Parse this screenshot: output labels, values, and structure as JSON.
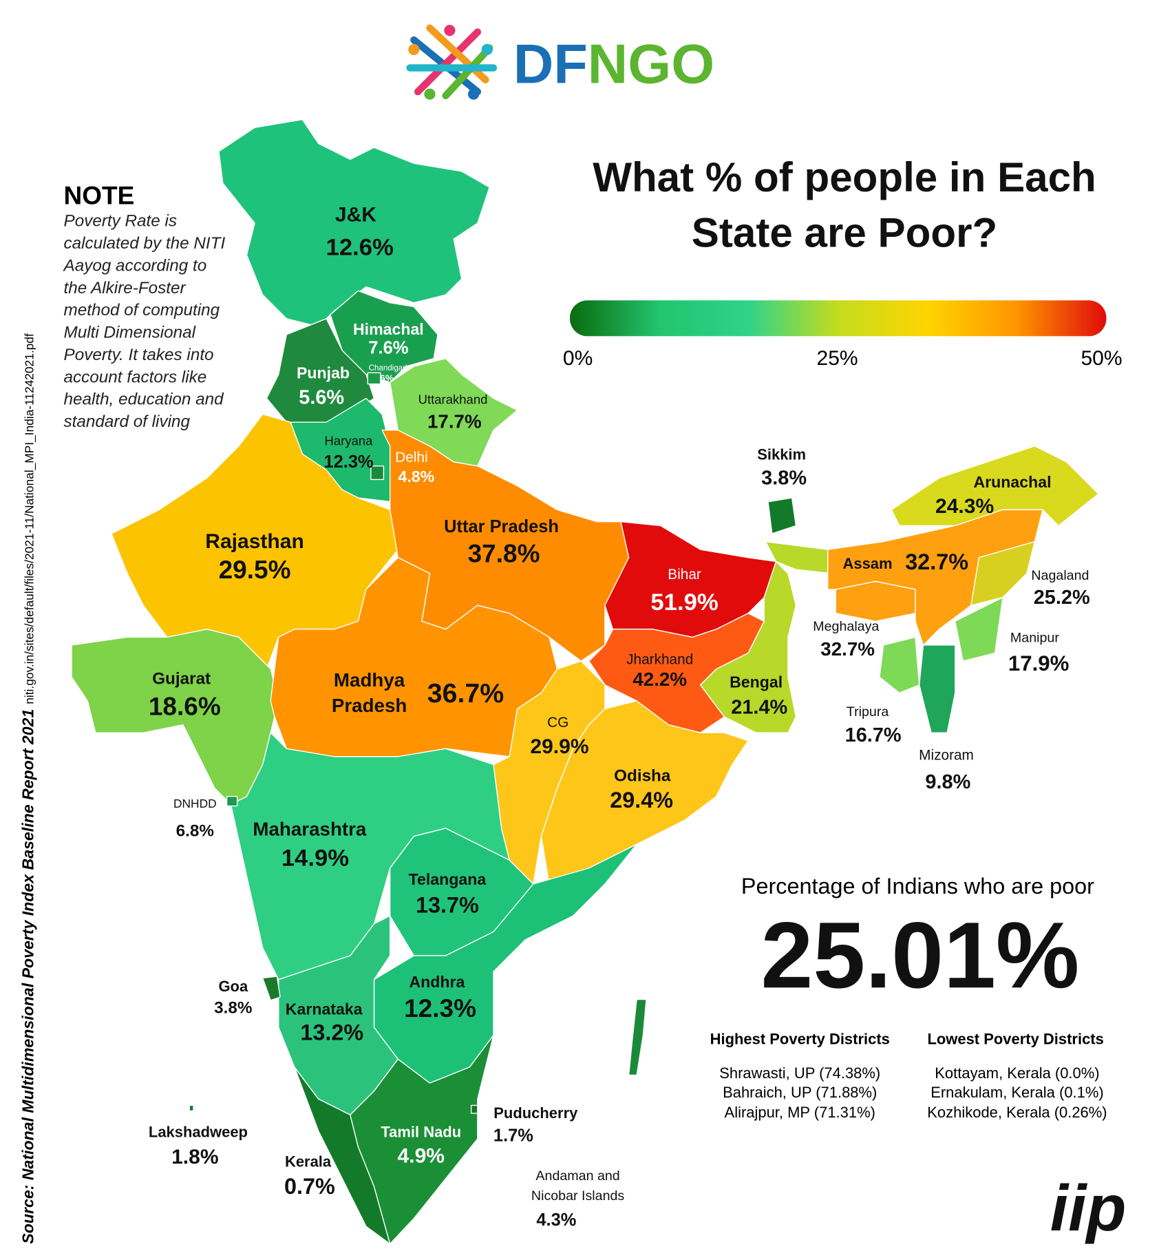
{
  "logo": {
    "text_a": "DF",
    "text_b": "NGO",
    "color_a": "#1a6fb5",
    "color_b": "#5bb530"
  },
  "title": [
    "What % of people in Each",
    "State are Poor?"
  ],
  "legend": {
    "labels": [
      "0%",
      "25%",
      "50%"
    ],
    "range": [
      0,
      50
    ],
    "gradient": [
      "#0b6b0f",
      "#22c46e",
      "#2fd38a",
      "#c4dc1e",
      "#ffd400",
      "#ff9500",
      "#e00b0b"
    ]
  },
  "note": {
    "heading": "NOTE",
    "lines": [
      "Poverty Rate is",
      "calculated by the NITI",
      "Aayog according to",
      "the Alkire-Foster",
      "method of computing",
      "Multi Dimensional",
      "Poverty. It takes into",
      "account factors like",
      "health, education and",
      "standard of living"
    ]
  },
  "source": {
    "bold": "Source: National Multidimensional Poverty Index Baseline Report 2021",
    "url": "niti.gov.in/sites/default/files/2021-11/National_MPI_India-11242021.pdf"
  },
  "states": [
    {
      "name": "J&K",
      "value": "12.6%",
      "color": "#1fc27a"
    },
    {
      "name": "Himachal",
      "value": "7.6%",
      "color": "#19a04f"
    },
    {
      "name": "Chandigarh",
      "value": "6%",
      "color": "#1a9a4a"
    },
    {
      "name": "Punjab",
      "value": "5.6%",
      "color": "#1f8a3e"
    },
    {
      "name": "Uttarakhand",
      "value": "17.7%",
      "color": "#80d957"
    },
    {
      "name": "Haryana",
      "value": "12.3%",
      "color": "#1db96c"
    },
    {
      "name": "Delhi",
      "value": "4.8%",
      "color": "#1a8a3a"
    },
    {
      "name": "Rajasthan",
      "value": "29.5%",
      "color": "#fcc400"
    },
    {
      "name": "Uttar Pradesh",
      "value": "37.8%",
      "color": "#ff8c00"
    },
    {
      "name": "Bihar",
      "value": "51.9%",
      "color": "#e10b0b"
    },
    {
      "name": "Jharkhand",
      "value": "42.2%",
      "color": "#ff5a14"
    },
    {
      "name": "Madhya Pradesh",
      "name_lines": [
        "Madhya",
        "Pradesh"
      ],
      "value": "36.7%",
      "color": "#ff9400"
    },
    {
      "name": "Gujarat",
      "value": "18.6%",
      "color": "#7ed348"
    },
    {
      "name": "Bengal",
      "value": "21.4%",
      "color": "#b8d82a"
    },
    {
      "name": "CG",
      "value": "29.9%",
      "color": "#ffc61a"
    },
    {
      "name": "Odisha",
      "value": "29.4%",
      "color": "#ffc61a"
    },
    {
      "name": "DNHDD",
      "value": "6.8%",
      "color": "#1a9a4a"
    },
    {
      "name": "Maharashtra",
      "value": "14.9%",
      "color": "#2ecf83"
    },
    {
      "name": "Telangana",
      "value": "13.7%",
      "color": "#1fc47a"
    },
    {
      "name": "Goa",
      "value": "3.8%",
      "color": "#1a7a2a"
    },
    {
      "name": "Karnataka",
      "value": "13.2%",
      "color": "#2bc37b"
    },
    {
      "name": "Andhra",
      "value": "12.3%",
      "color": "#1dc077"
    },
    {
      "name": "Lakshadweep",
      "value": "1.8%",
      "color": "#137a2a"
    },
    {
      "name": "Kerala",
      "value": "0.7%",
      "color": "#137a2a"
    },
    {
      "name": "Tamil Nadu",
      "value": "4.9%",
      "color": "#1a8f35"
    },
    {
      "name": "Puducherry",
      "value": "1.7%",
      "color": "#137a2a"
    },
    {
      "name": "Andaman and Nicobar Islands",
      "name_lines": [
        "Andaman and",
        "Nicobar Islands"
      ],
      "value": "4.3%",
      "color": "#1a8a3a"
    },
    {
      "name": "Sikkim",
      "value": "3.8%",
      "color": "#137a2a"
    },
    {
      "name": "Arunachal",
      "value": "24.3%",
      "color": "#d9d91e"
    },
    {
      "name": "Assam",
      "value": "32.7%",
      "color": "#ffa010"
    },
    {
      "name": "Meghalaya",
      "value": "32.7%",
      "color": "#ffa010"
    },
    {
      "name": "Nagaland",
      "value": "25.2%",
      "color": "#d8d020"
    },
    {
      "name": "Manipur",
      "value": "17.9%",
      "color": "#7ed957"
    },
    {
      "name": "Tripura",
      "value": "16.7%",
      "color": "#7ed957"
    },
    {
      "name": "Mizoram",
      "value": "9.8%",
      "color": "#1fa65a"
    }
  ],
  "national": {
    "label": "Percentage of Indians who are poor",
    "value": "25.01%"
  },
  "districts": {
    "highest": {
      "heading": "Highest Poverty Districts",
      "items": [
        "Shrawasti, UP (74.38%)",
        "Bahraich, UP (71.88%)",
        "Alirajpur, MP (71.31%)"
      ]
    },
    "lowest": {
      "heading": "Lowest Poverty Districts",
      "items": [
        "Kottayam, Kerala (0.0%)",
        "Ernakulam, Kerala (0.1%)",
        "Kozhikode, Kerala (0.26%)"
      ]
    }
  },
  "brand": "iip"
}
